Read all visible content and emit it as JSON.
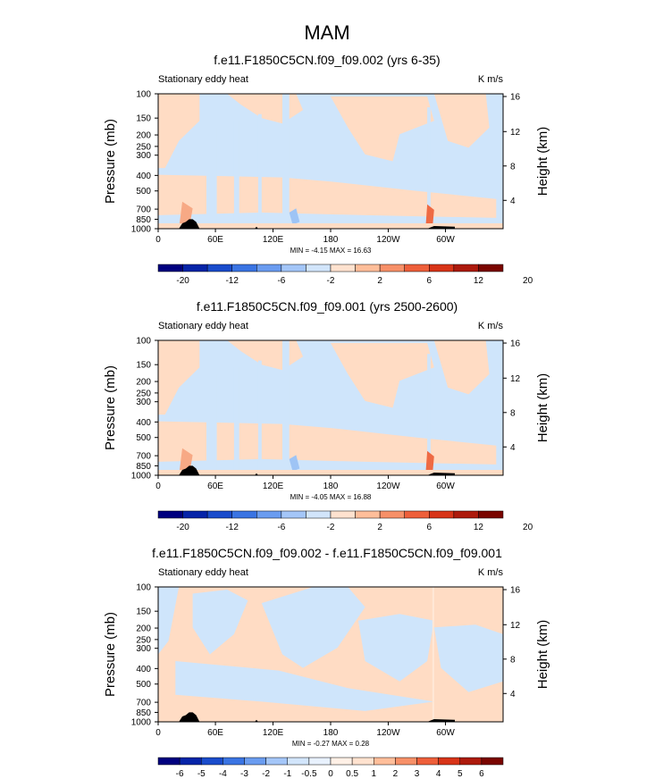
{
  "figure": {
    "title": "MAM"
  },
  "chart_data": [
    {
      "type": "heatmap",
      "title": "f.e11.F1850C5CN.f09_f09.002 (yrs 6-35)",
      "left_label": "Stationary eddy heat",
      "right_label": "K m/s",
      "ylabel": "Pressure (mb)",
      "ylabel_right": "Height (km)",
      "yticks": [
        "100",
        "150",
        "200",
        "250",
        "300",
        "400",
        "500",
        "700",
        "850",
        "1000"
      ],
      "yticks_right": [
        "4",
        "8",
        "12",
        "16"
      ],
      "xticks": [
        "0",
        "60E",
        "120E",
        "180",
        "120W",
        "60W"
      ],
      "stats": "MIN =  -4.15  MAX =  16.63",
      "colorbar_labels": [
        "-20",
        "-12",
        "-6",
        "-2",
        "2",
        "6",
        "12",
        "20"
      ]
    },
    {
      "type": "heatmap",
      "title": "f.e11.F1850C5CN.f09_f09.001 (yrs 2500-2600)",
      "left_label": "Stationary eddy heat",
      "right_label": "K m/s",
      "ylabel": "Pressure (mb)",
      "ylabel_right": "Height (km)",
      "yticks": [
        "100",
        "150",
        "200",
        "250",
        "300",
        "400",
        "500",
        "700",
        "850",
        "1000"
      ],
      "yticks_right": [
        "4",
        "8",
        "12",
        "16"
      ],
      "xticks": [
        "0",
        "60E",
        "120E",
        "180",
        "120W",
        "60W"
      ],
      "stats": "MIN =  -4.05  MAX =  16.88",
      "colorbar_labels": [
        "-20",
        "-12",
        "-6",
        "-2",
        "2",
        "6",
        "12",
        "20"
      ]
    },
    {
      "type": "heatmap",
      "title": "f.e11.F1850C5CN.f09_f09.002 - f.e11.F1850C5CN.f09_f09.001",
      "left_label": "Stationary eddy heat",
      "right_label": "K m/s",
      "ylabel": "Pressure (mb)",
      "ylabel_right": "Height (km)",
      "yticks": [
        "100",
        "150",
        "200",
        "250",
        "300",
        "400",
        "500",
        "700",
        "850",
        "1000"
      ],
      "yticks_right": [
        "4",
        "8",
        "12",
        "16"
      ],
      "xticks": [
        "0",
        "60E",
        "120E",
        "180",
        "120W",
        "60W"
      ],
      "stats": "MIN =  -0.27  MAX =  0.28",
      "colorbar_labels": [
        "-6",
        "-5",
        "-4",
        "-3",
        "-2",
        "-1",
        "-0.5",
        "0",
        "0.5",
        "1",
        "2",
        "3",
        "4",
        "5",
        "6"
      ]
    }
  ],
  "colors": {
    "panel_a": [
      "#ffdcc4",
      "#cfe5fb",
      "#cfe5fb",
      "#ffdcc4",
      "#cfe5fb",
      "#ffdcc4",
      "#cfe5fb",
      "#ffdcc4"
    ],
    "panel_c": [
      "#cfe5fb",
      "#ffdcc4",
      "#cfe5fb",
      "#ffdcc4",
      "#cfe5fb",
      "#ffdcc4",
      "#cfe5fb",
      "#ffdcc4"
    ],
    "cbar_main": [
      "#00007f",
      "#0624a8",
      "#1a4ccc",
      "#3a74e3",
      "#6a9cf0",
      "#a4c6f8",
      "#d2e5fb",
      "#ffe2cf",
      "#ffbe9a",
      "#f79068",
      "#ee5f3a",
      "#d83418",
      "#ad1a0c",
      "#7a0500"
    ],
    "cbar_diff": [
      "#00007f",
      "#0624a8",
      "#1a4ccc",
      "#3a74e3",
      "#6a9cf0",
      "#a4c6f8",
      "#d2e5fb",
      "#e8f1fd",
      "#fff0e6",
      "#ffe2cf",
      "#ffbe9a",
      "#f79068",
      "#ee5f3a",
      "#d83418",
      "#ad1a0c",
      "#7a0500"
    ]
  }
}
